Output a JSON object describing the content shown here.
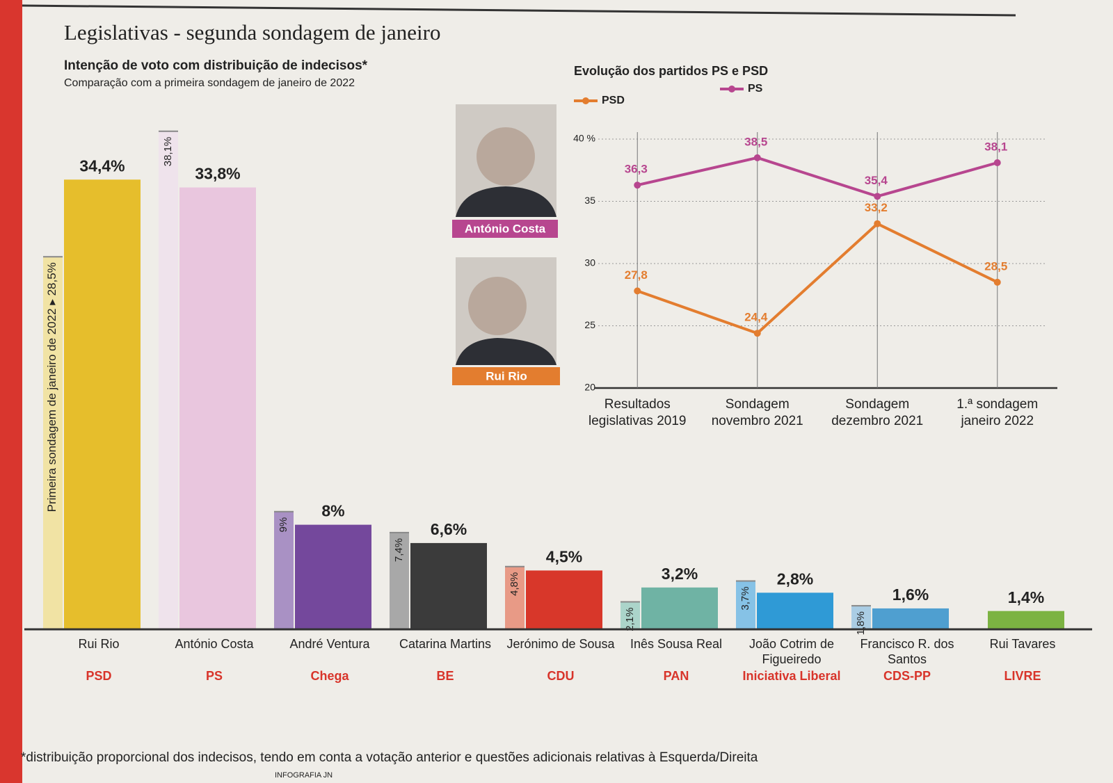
{
  "header": {
    "title": "Legislativas - segunda sondagem de janeiro",
    "subtitle": "Intenção de voto com distribuição de indecisos*",
    "note": "Comparação com a primeira sondagem de janeiro de 2022"
  },
  "photos": [
    "António Costa",
    "Rui Rio"
  ],
  "footnote": "*distribuição proporcional dos indecisos, tendo em conta a votação anterior e questões adicionais relativas à Esquerda/Direita",
  "credit": "INFOGRAFIA JN",
  "chart_data": [
    {
      "type": "bar",
      "categories": [
        "Rui Rio",
        "António Costa",
        "André Ventura",
        "Catarina Martins",
        "Jerónimo de Sousa",
        "Inês Sousa Real",
        "João Cotrim de Figueiredo",
        "Francisco R. dos Santos",
        "Rui Tavares"
      ],
      "parties": [
        "PSD",
        "PS",
        "Chega",
        "BE",
        "CDU",
        "PAN",
        "Iniciativa Liberal",
        "CDS-PP",
        "LIVRE"
      ],
      "series": [
        {
          "name": "Primeira sondagem de janeiro de 2022",
          "colors": [
            "#f1e3a4",
            "#efe3ec",
            "#a991c4",
            "#a8a8a8",
            "#e89a86",
            "#abd4ca",
            "#86c2e6",
            "#aacde4",
            null
          ],
          "values": [
            28.5,
            38.1,
            9,
            7.4,
            4.8,
            2.1,
            3.7,
            1.8,
            null
          ],
          "value_labels": [
            "28,5%",
            "38,1%",
            "9%",
            "7,4%",
            "4,8%",
            "2,1%",
            "3,7%",
            "1,8%",
            null
          ]
        },
        {
          "colors": [
            "#e6be2c",
            "#e9c6de",
            "#74489c",
            "#3b3b3b",
            "#d8372a",
            "#6fb3a4",
            "#2f9ad6",
            "#4f9fd0",
            "#7cb342"
          ],
          "values": [
            34.4,
            33.8,
            8,
            6.6,
            4.5,
            3.2,
            2.8,
            1.6,
            1.4
          ],
          "value_labels": [
            "34,4%",
            "33,8%",
            "8%",
            "6,6%",
            "4,5%",
            "3,2%",
            "2,8%",
            "1,6%",
            "1,4%"
          ]
        }
      ]
    },
    {
      "type": "line",
      "title": "Evolução dos partidos PS e PSD",
      "categories": [
        "Resultados legislativas 2019",
        "Sondagem novembro 2021",
        "Sondagem dezembro 2021",
        "1.ª sondagem janeiro 2022"
      ],
      "series": [
        {
          "name": "PSD",
          "color": "#e37d2f",
          "values": [
            27.8,
            24.4,
            33.2,
            28.5
          ],
          "value_labels": [
            "27,8",
            "24,4",
            "33,2",
            "28,5"
          ]
        },
        {
          "name": "PS",
          "color": "#b7468f",
          "values": [
            36.3,
            38.5,
            35.4,
            38.1
          ],
          "value_labels": [
            "36,3",
            "38,5",
            "35,4",
            "38,1"
          ]
        }
      ],
      "ylim": [
        20,
        40
      ],
      "yticks": [
        20,
        25,
        30,
        35,
        {
          "value": 40,
          "label": "40 %"
        }
      ],
      "grid": true
    }
  ]
}
